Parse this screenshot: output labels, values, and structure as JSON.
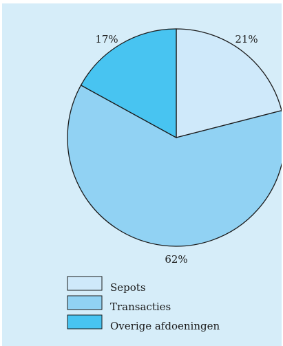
{
  "chart_data": {
    "type": "pie",
    "categories": [
      "Sepots",
      "Transacties",
      "Overige afdoeningen"
    ],
    "values": [
      21,
      62,
      17
    ],
    "value_labels": [
      "21%",
      "62%",
      "17%"
    ],
    "start_angle_deg": 0,
    "direction": "clockwise",
    "legend_position": "bottom-left"
  },
  "colors": {
    "background": "#d6edf9",
    "Sepots": "#cfe9fa",
    "Transacties": "#91d2f3",
    "Overige afdoeningen": "#48c4f1",
    "stroke": "#1a1a1a"
  }
}
